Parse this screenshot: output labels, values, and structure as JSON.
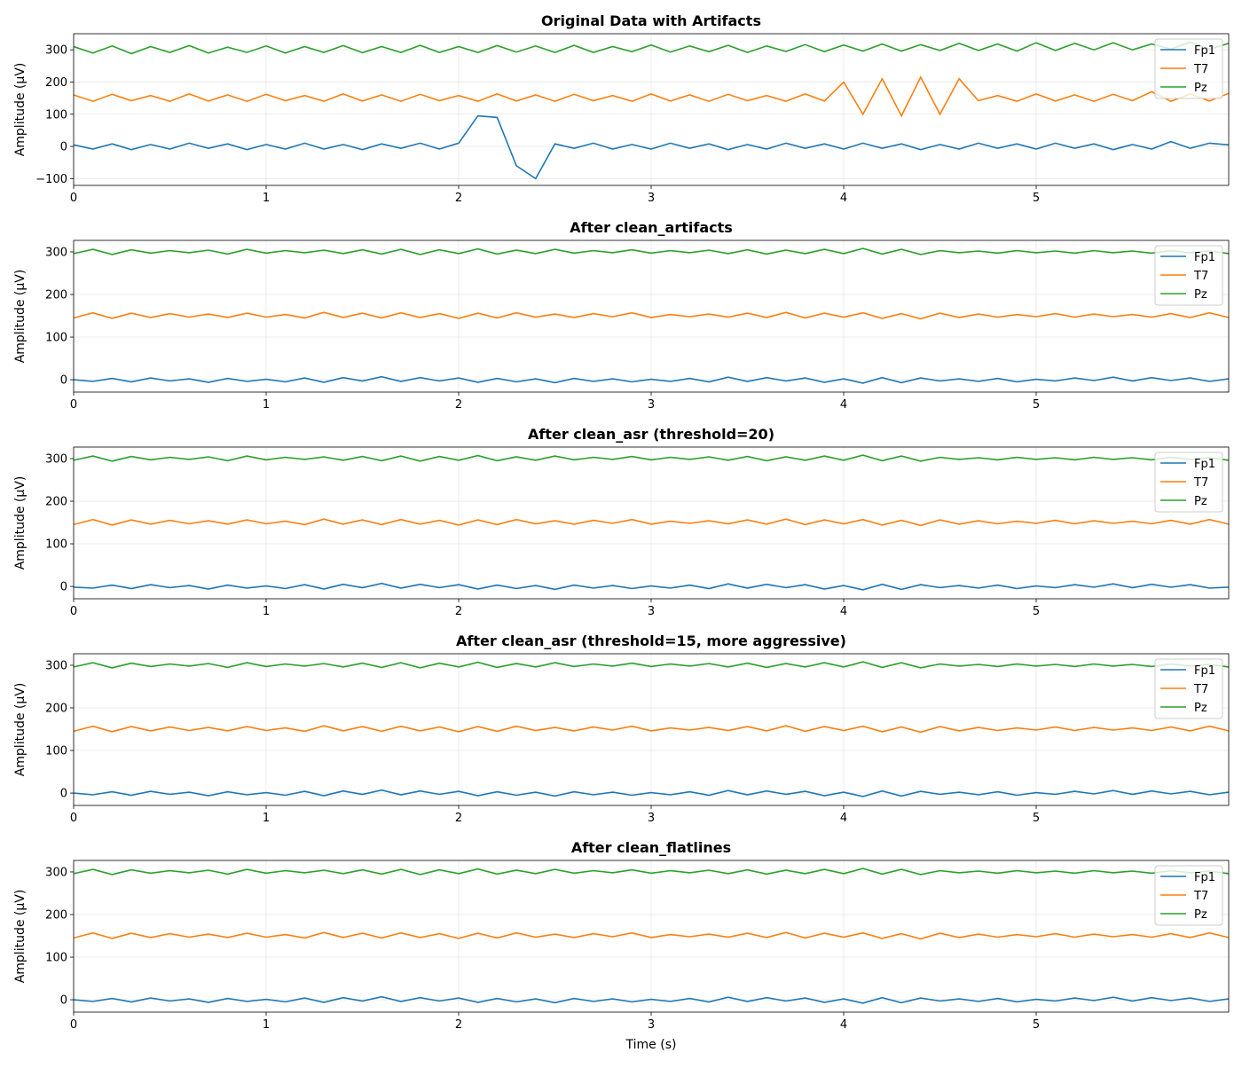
{
  "chart_data": [
    {
      "type": "line",
      "title": "Original Data with Artifacts",
      "xlabel": "",
      "ylabel": "Amplitude (µV)",
      "xlim": [
        0,
        6
      ],
      "ylim": [
        -121,
        350
      ],
      "xticks": [
        0,
        1,
        2,
        3,
        4,
        5
      ],
      "yticks": [
        -100,
        0,
        100,
        200,
        300
      ],
      "grid": true,
      "legend": "upper right",
      "x_step": 0.1,
      "series": [
        {
          "name": "Fp1",
          "color": "#1f77b4",
          "values": [
            5,
            -8,
            8,
            -10,
            6,
            -8,
            10,
            -6,
            8,
            -10,
            6,
            -8,
            10,
            -8,
            6,
            -10,
            8,
            -6,
            10,
            -8,
            10,
            95,
            90,
            -60,
            -100,
            8,
            -6,
            10,
            -8,
            6,
            -8,
            10,
            -6,
            8,
            -10,
            6,
            -8,
            10,
            -6,
            8,
            -8,
            10,
            -6,
            8,
            -10,
            6,
            -8,
            10,
            -6,
            8,
            -8,
            10,
            -6,
            8,
            -10,
            6,
            -8,
            15,
            -6,
            10,
            5
          ]
        },
        {
          "name": "T7",
          "color": "#ff7f0e",
          "values": [
            160,
            140,
            162,
            142,
            158,
            140,
            163,
            141,
            160,
            140,
            162,
            142,
            158,
            140,
            163,
            141,
            160,
            140,
            162,
            142,
            158,
            140,
            163,
            141,
            160,
            140,
            162,
            142,
            158,
            140,
            163,
            141,
            160,
            140,
            162,
            142,
            158,
            140,
            163,
            141,
            200,
            100,
            210,
            95,
            215,
            100,
            210,
            142,
            158,
            140,
            163,
            141,
            160,
            140,
            162,
            142,
            170,
            140,
            163,
            141,
            165
          ]
        },
        {
          "name": "Pz",
          "color": "#2ca02c",
          "values": [
            310,
            290,
            312,
            288,
            310,
            292,
            313,
            290,
            308,
            292,
            312,
            290,
            310,
            292,
            313,
            291,
            310,
            292,
            314,
            292,
            310,
            292,
            313,
            293,
            312,
            292,
            314,
            292,
            310,
            294,
            315,
            293,
            312,
            294,
            314,
            292,
            312,
            295,
            316,
            294,
            315,
            296,
            318,
            296,
            316,
            298,
            320,
            298,
            318,
            296,
            322,
            298,
            320,
            300,
            322,
            300,
            318,
            302,
            324,
            302,
            320
          ]
        }
      ]
    },
    {
      "type": "line",
      "title": "After clean_artifacts",
      "xlabel": "",
      "ylabel": "Amplitude (µV)",
      "xlim": [
        0,
        6
      ],
      "ylim": [
        -29,
        327
      ],
      "xticks": [
        0,
        1,
        2,
        3,
        4,
        5
      ],
      "yticks": [
        0,
        100,
        200,
        300
      ],
      "grid": true,
      "legend": "upper right",
      "x_step": 0.1,
      "series": [
        {
          "name": "Fp1",
          "color": "#1f77b4",
          "values": [
            0,
            -4,
            3,
            -5,
            4,
            -3,
            2,
            -6,
            3,
            -4,
            1,
            -5,
            4,
            -6,
            5,
            -3,
            7,
            -4,
            5,
            -3,
            4,
            -6,
            3,
            -5,
            2,
            -7,
            3,
            -4,
            2,
            -5,
            1,
            -4,
            3,
            -5,
            6,
            -4,
            5,
            -3,
            4,
            -6,
            2,
            -8,
            5,
            -7,
            4,
            -3,
            2,
            -4,
            3,
            -5,
            1,
            -3,
            4,
            -2,
            6,
            -3,
            5,
            -2,
            4,
            -4,
            2
          ]
        },
        {
          "name": "T7",
          "color": "#ff7f0e",
          "values": [
            145,
            157,
            144,
            156,
            146,
            155,
            147,
            154,
            146,
            156,
            147,
            153,
            145,
            158,
            146,
            156,
            145,
            157,
            146,
            155,
            144,
            156,
            145,
            157,
            147,
            154,
            146,
            155,
            148,
            157,
            146,
            153,
            148,
            154,
            147,
            156,
            146,
            158,
            145,
            156,
            147,
            157,
            144,
            155,
            143,
            156,
            146,
            154,
            147,
            153,
            148,
            155,
            147,
            154,
            148,
            153,
            147,
            155,
            146,
            157,
            146
          ]
        },
        {
          "name": "Pz",
          "color": "#2ca02c",
          "values": [
            296,
            306,
            294,
            305,
            297,
            303,
            298,
            304,
            295,
            306,
            297,
            303,
            298,
            304,
            296,
            305,
            295,
            306,
            294,
            305,
            296,
            307,
            295,
            304,
            296,
            306,
            297,
            303,
            298,
            305,
            297,
            303,
            298,
            304,
            296,
            305,
            295,
            304,
            296,
            306,
            296,
            308,
            295,
            306,
            294,
            303,
            298,
            302,
            297,
            303,
            298,
            302,
            297,
            303,
            298,
            302,
            297,
            303,
            298,
            302,
            296
          ]
        }
      ]
    },
    {
      "type": "line",
      "title": "After clean_asr (threshold=20)",
      "xlabel": "",
      "ylabel": "Amplitude (µV)",
      "xlim": [
        0,
        6
      ],
      "ylim": [
        -29,
        327
      ],
      "xticks": [
        0,
        1,
        2,
        3,
        4,
        5
      ],
      "yticks": [
        0,
        100,
        200,
        300
      ],
      "grid": true,
      "legend": "upper right",
      "x_step": 0.1,
      "series": [
        {
          "name": "Fp1",
          "color": "#1f77b4",
          "values": [
            -2,
            -4,
            3,
            -5,
            4,
            -3,
            2,
            -6,
            3,
            -4,
            1,
            -5,
            4,
            -6,
            5,
            -3,
            7,
            -4,
            5,
            -3,
            4,
            -6,
            3,
            -5,
            2,
            -7,
            3,
            -4,
            2,
            -5,
            1,
            -4,
            3,
            -5,
            6,
            -4,
            5,
            -3,
            4,
            -6,
            2,
            -8,
            5,
            -7,
            4,
            -3,
            2,
            -4,
            3,
            -5,
            1,
            -3,
            4,
            -2,
            6,
            -3,
            5,
            -2,
            4,
            -4,
            -2
          ]
        },
        {
          "name": "T7",
          "color": "#ff7f0e",
          "values": [
            145,
            157,
            144,
            156,
            146,
            155,
            147,
            154,
            146,
            156,
            147,
            153,
            145,
            158,
            146,
            156,
            145,
            157,
            146,
            155,
            144,
            156,
            145,
            157,
            147,
            154,
            146,
            155,
            148,
            157,
            146,
            153,
            148,
            154,
            147,
            156,
            146,
            158,
            145,
            156,
            147,
            157,
            144,
            155,
            143,
            156,
            146,
            154,
            147,
            153,
            148,
            155,
            147,
            154,
            148,
            153,
            147,
            155,
            146,
            157,
            146
          ]
        },
        {
          "name": "Pz",
          "color": "#2ca02c",
          "values": [
            296,
            306,
            294,
            305,
            297,
            303,
            298,
            304,
            295,
            306,
            297,
            303,
            298,
            304,
            296,
            305,
            295,
            306,
            294,
            305,
            296,
            307,
            295,
            304,
            296,
            306,
            297,
            303,
            298,
            305,
            297,
            303,
            298,
            304,
            296,
            305,
            295,
            304,
            296,
            306,
            296,
            308,
            295,
            306,
            294,
            303,
            298,
            302,
            297,
            303,
            298,
            302,
            297,
            303,
            298,
            302,
            297,
            303,
            298,
            302,
            296
          ]
        }
      ]
    },
    {
      "type": "line",
      "title": "After clean_asr (threshold=15, more aggressive)",
      "xlabel": "",
      "ylabel": "Amplitude (µV)",
      "xlim": [
        0,
        6
      ],
      "ylim": [
        -29,
        327
      ],
      "xticks": [
        0,
        1,
        2,
        3,
        4,
        5
      ],
      "yticks": [
        0,
        100,
        200,
        300
      ],
      "grid": true,
      "legend": "upper right",
      "x_step": 0.1,
      "series": [
        {
          "name": "Fp1",
          "color": "#1f77b4",
          "values": [
            0,
            -4,
            3,
            -5,
            4,
            -3,
            2,
            -6,
            3,
            -4,
            1,
            -5,
            4,
            -6,
            5,
            -3,
            7,
            -4,
            5,
            -3,
            4,
            -6,
            3,
            -5,
            2,
            -7,
            3,
            -4,
            2,
            -5,
            1,
            -4,
            3,
            -5,
            6,
            -4,
            5,
            -3,
            4,
            -6,
            2,
            -8,
            5,
            -7,
            4,
            -3,
            2,
            -4,
            3,
            -5,
            1,
            -3,
            4,
            -2,
            6,
            -3,
            5,
            -2,
            4,
            -4,
            2
          ]
        },
        {
          "name": "T7",
          "color": "#ff7f0e",
          "values": [
            145,
            157,
            144,
            156,
            146,
            155,
            147,
            154,
            146,
            156,
            147,
            153,
            145,
            158,
            146,
            156,
            145,
            157,
            146,
            155,
            144,
            156,
            145,
            157,
            147,
            154,
            146,
            155,
            148,
            157,
            146,
            153,
            148,
            154,
            147,
            156,
            146,
            158,
            145,
            156,
            147,
            157,
            144,
            155,
            143,
            156,
            146,
            154,
            147,
            153,
            148,
            155,
            147,
            154,
            148,
            153,
            147,
            155,
            146,
            157,
            146
          ]
        },
        {
          "name": "Pz",
          "color": "#2ca02c",
          "values": [
            296,
            306,
            294,
            305,
            297,
            303,
            298,
            304,
            295,
            306,
            297,
            303,
            298,
            304,
            296,
            305,
            295,
            306,
            294,
            305,
            296,
            307,
            295,
            304,
            296,
            306,
            297,
            303,
            298,
            305,
            297,
            303,
            298,
            304,
            296,
            305,
            295,
            304,
            296,
            306,
            296,
            308,
            295,
            306,
            294,
            303,
            298,
            302,
            297,
            303,
            298,
            302,
            297,
            303,
            298,
            302,
            297,
            303,
            298,
            302,
            296
          ]
        }
      ]
    },
    {
      "type": "line",
      "title": "After clean_flatlines",
      "xlabel": "Time (s)",
      "ylabel": "Amplitude (µV)",
      "xlim": [
        0,
        6
      ],
      "ylim": [
        -29,
        327
      ],
      "xticks": [
        0,
        1,
        2,
        3,
        4,
        5
      ],
      "yticks": [
        0,
        100,
        200,
        300
      ],
      "grid": true,
      "legend": "upper right",
      "x_step": 0.1,
      "series": [
        {
          "name": "Fp1",
          "color": "#1f77b4",
          "values": [
            0,
            -4,
            3,
            -5,
            4,
            -3,
            2,
            -6,
            3,
            -4,
            1,
            -5,
            4,
            -6,
            5,
            -3,
            7,
            -4,
            5,
            -3,
            4,
            -6,
            3,
            -5,
            2,
            -7,
            3,
            -4,
            2,
            -5,
            1,
            -4,
            3,
            -5,
            6,
            -4,
            5,
            -3,
            4,
            -6,
            2,
            -8,
            5,
            -7,
            4,
            -3,
            2,
            -4,
            3,
            -5,
            1,
            -3,
            4,
            -2,
            6,
            -3,
            5,
            -2,
            4,
            -4,
            2
          ]
        },
        {
          "name": "T7",
          "color": "#ff7f0e",
          "values": [
            145,
            157,
            144,
            156,
            146,
            155,
            147,
            154,
            146,
            156,
            147,
            153,
            145,
            158,
            146,
            156,
            145,
            157,
            146,
            155,
            144,
            156,
            145,
            157,
            147,
            154,
            146,
            155,
            148,
            157,
            146,
            153,
            148,
            154,
            147,
            156,
            146,
            158,
            145,
            156,
            147,
            157,
            144,
            155,
            143,
            156,
            146,
            154,
            147,
            153,
            148,
            155,
            147,
            154,
            148,
            153,
            147,
            155,
            146,
            157,
            146
          ]
        },
        {
          "name": "Pz",
          "color": "#2ca02c",
          "values": [
            296,
            306,
            294,
            305,
            297,
            303,
            298,
            304,
            295,
            306,
            297,
            303,
            298,
            304,
            296,
            305,
            295,
            306,
            294,
            305,
            296,
            307,
            295,
            304,
            296,
            306,
            297,
            303,
            298,
            305,
            297,
            303,
            298,
            304,
            296,
            305,
            295,
            304,
            296,
            306,
            296,
            308,
            295,
            306,
            294,
            303,
            298,
            302,
            297,
            303,
            298,
            302,
            297,
            303,
            298,
            302,
            297,
            303,
            298,
            302,
            296
          ]
        }
      ]
    }
  ]
}
